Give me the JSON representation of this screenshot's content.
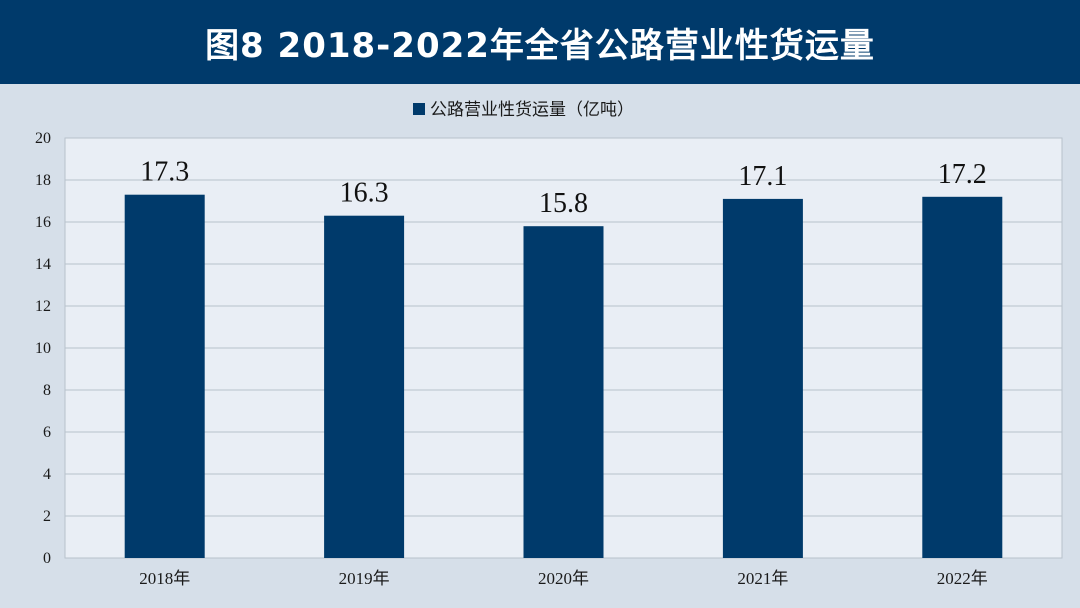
{
  "header": {
    "title": "图8  2018-2022年全省公路营业性货运量"
  },
  "colors": {
    "bar": "#003a6b",
    "header_bg": "#003a6b",
    "plot_bg": "#e9eef5",
    "page_bg": "#d6dfe9",
    "grid": "#b8c2cc"
  },
  "chart_data": {
    "type": "bar",
    "title": "图8  2018-2022年全省公路营业性货运量",
    "categories": [
      "2018年",
      "2019年",
      "2020年",
      "2021年",
      "2022年"
    ],
    "series": [
      {
        "name": "公路营业性货运量（亿吨）",
        "values": [
          17.3,
          16.3,
          15.8,
          17.1,
          17.2
        ]
      }
    ],
    "data_labels": [
      "17.3",
      "16.3",
      "15.8",
      "17.1",
      "17.2"
    ],
    "y_ticks": [
      "0",
      "2",
      "4",
      "6",
      "8",
      "10",
      "12",
      "14",
      "16",
      "18",
      "20"
    ],
    "ylim": [
      0,
      20
    ],
    "grid": true,
    "legend": "top-center"
  }
}
